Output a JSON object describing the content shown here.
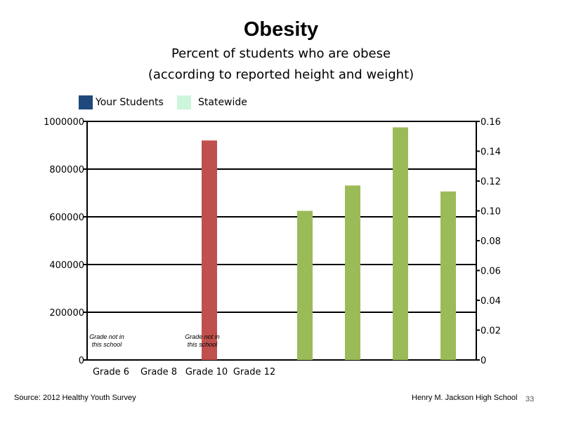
{
  "slide": {
    "title": "Obesity",
    "subtitle": "Percent of students who are obese",
    "subtitle2": "(according to reported height and weight)",
    "source": "Source: 2012 Healthy Youth Survey",
    "school": "Henry M. Jackson High School",
    "page_number": "33"
  },
  "legend": [
    {
      "label": "Your Students",
      "color": "#1f497d"
    },
    {
      "label": "Statewide",
      "color": "#ccf5dc"
    }
  ],
  "chart_data": {
    "type": "bar",
    "categories": [
      "Grade 6",
      "Grade 8",
      "Grade 10",
      "Grade 12"
    ],
    "grade_note": "Grade not in this school",
    "grade_note_slots": [
      0,
      2
    ],
    "left_axis": {
      "ylim": [
        0,
        1000000
      ],
      "ticks": [
        "0",
        "200000",
        "400000",
        "600000",
        "800000",
        "1000000"
      ]
    },
    "right_axis": {
      "ylim": [
        0,
        0.16
      ],
      "ticks": [
        "0",
        "0.02",
        "0.04",
        "0.06",
        "0.08",
        "0.10",
        "0.12",
        "0.14",
        "0.16"
      ]
    },
    "grid": true,
    "series": [
      {
        "axis": "left",
        "color": "#c0504d",
        "values": [
          {
            "slot": 2,
            "value": 920000
          }
        ]
      },
      {
        "axis": "right",
        "color": "#9bbb59",
        "values": [
          {
            "slot": 4,
            "value": 0.1
          },
          {
            "slot": 5,
            "value": 0.117
          },
          {
            "slot": 6,
            "value": 0.156
          },
          {
            "slot": 7,
            "value": 0.113
          }
        ]
      }
    ]
  },
  "colors": {
    "axis": "#000000",
    "grid": "#000000",
    "your_students": "#1f497d",
    "statewide": "#ccf5dc",
    "red_bar": "#c0504d",
    "green_bar": "#9bbb59"
  }
}
